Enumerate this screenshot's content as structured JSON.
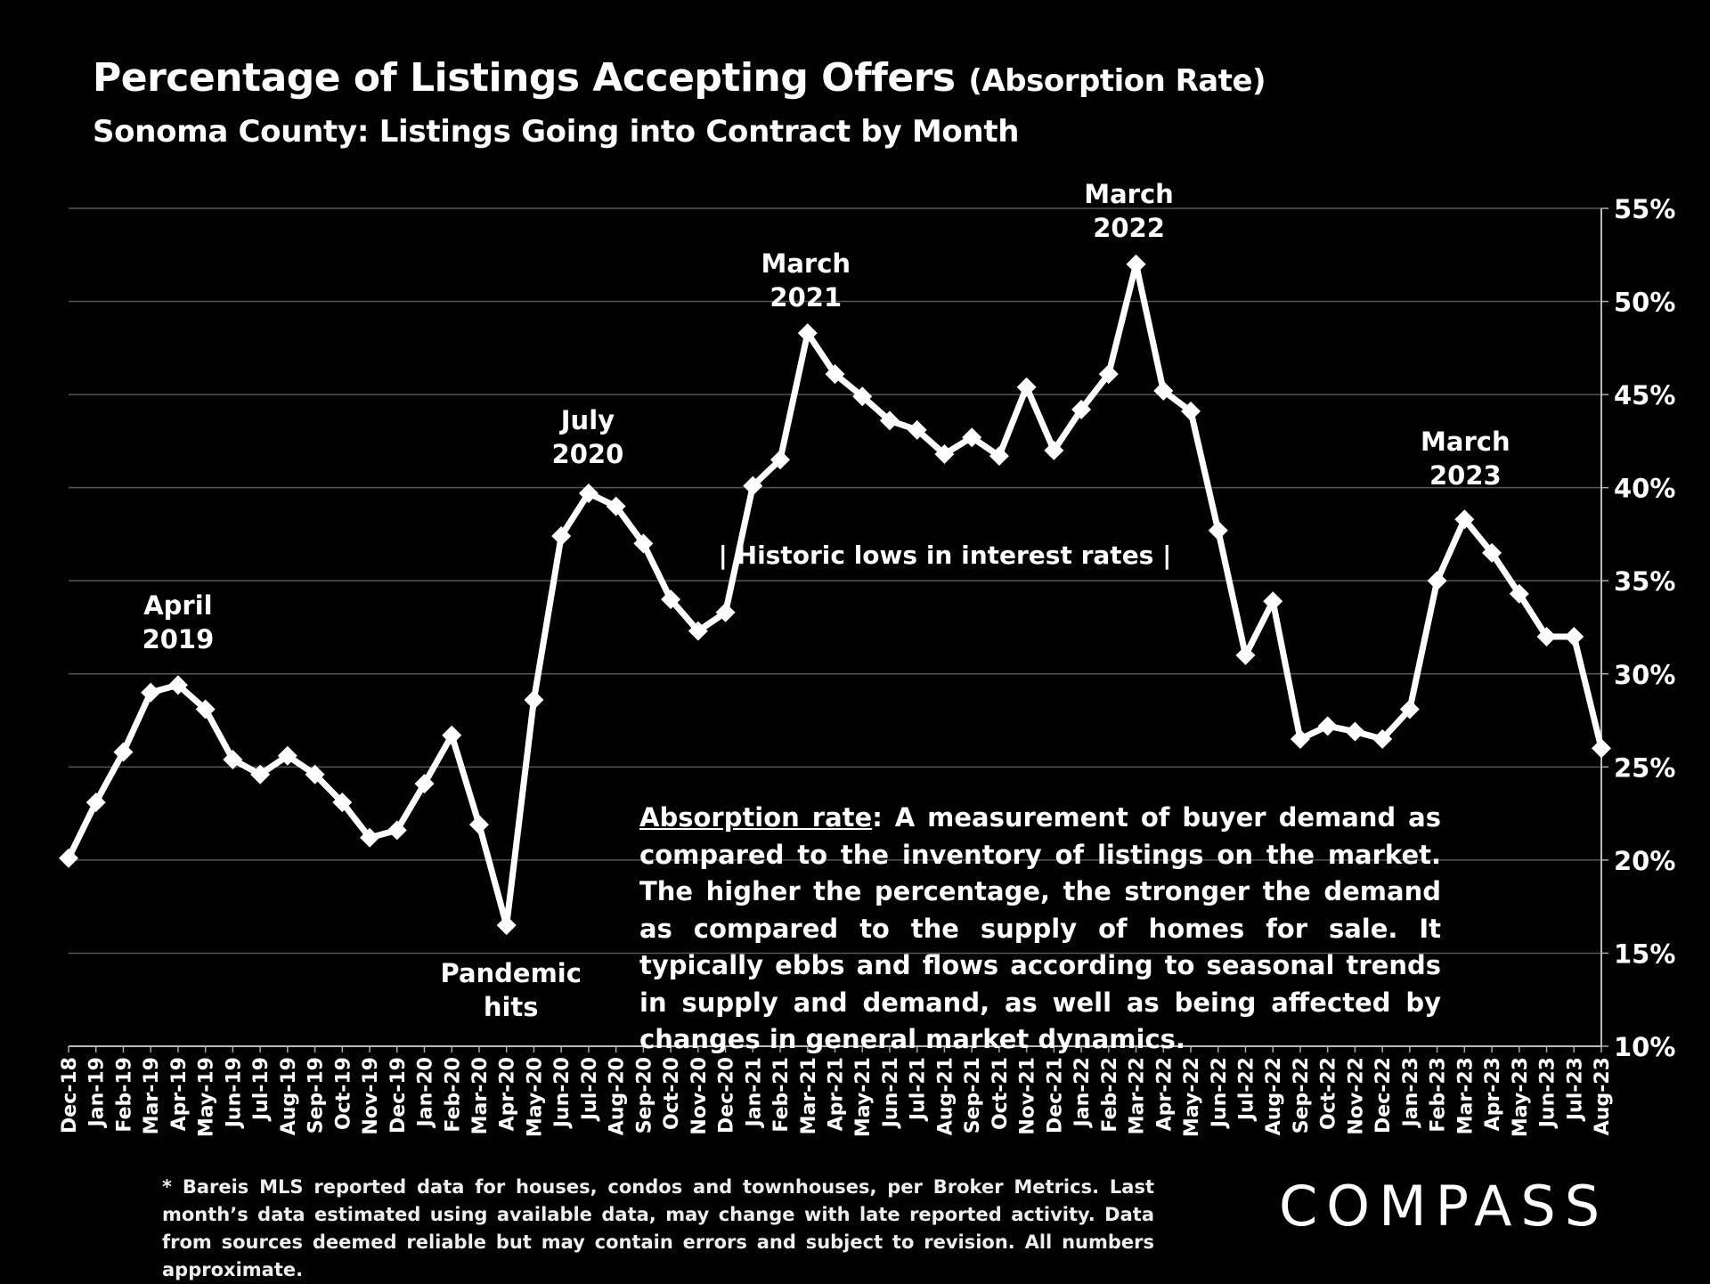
{
  "header": {
    "title_main": "Percentage of Listings Accepting Offers",
    "title_paren": "(Absorption Rate)",
    "subtitle": "Sonoma County: Listings Going into Contract by Month"
  },
  "description": {
    "term": "Absorption rate",
    "text": ":  A measurement of buyer demand as compared to the inventory of listings on the market. The higher the percentage, the stronger the demand as compared to the supply of homes for sale. It typically ebbs and flows according to seasonal trends in supply and demand, as well as being affected by changes in general market dynamics."
  },
  "footnote": "* Bareis MLS reported data for houses, condos and townhouses, per Broker Metrics. Last month’s data estimated using available data, may change with late reported activity. Data from sources deemed reliable but may contain errors and subject to revision. All numbers approximate.",
  "logo": "COMPASS",
  "colors": {
    "background": "#000000",
    "line": "#ffffff",
    "grid": "#555555"
  },
  "chart_data": {
    "type": "line",
    "title": "Percentage of Listings Accepting Offers (Absorption Rate)",
    "subtitle": "Sonoma County: Listings Going into Contract by Month",
    "categories": [
      "Dec-18",
      "Jan-19",
      "Feb-19",
      "Mar-19",
      "Apr-19",
      "May-19",
      "Jun-19",
      "Jul-19",
      "Aug-19",
      "Sep-19",
      "Oct-19",
      "Nov-19",
      "Dec-19",
      "Jan-20",
      "Feb-20",
      "Mar-20",
      "Apr-20",
      "May-20",
      "Jun-20",
      "Jul-20",
      "Aug-20",
      "Sep-20",
      "Oct-20",
      "Nov-20",
      "Dec-20",
      "Jan-21",
      "Feb-21",
      "Mar-21",
      "Apr-21",
      "May-21",
      "Jun-21",
      "Jul-21",
      "Aug-21",
      "Sep-21",
      "Oct-21",
      "Nov-21",
      "Dec-21",
      "Jan-22",
      "Feb-22",
      "Mar-22",
      "Apr-22",
      "May-22",
      "Jun-22",
      "Jul-22",
      "Aug-22",
      "Sep-22",
      "Oct-22",
      "Nov-22",
      "Dec-22",
      "Jan-23",
      "Feb-23",
      "Mar-23",
      "Apr-23",
      "May-23",
      "Jun-23",
      "Jul-23",
      "Aug-23"
    ],
    "series": [
      {
        "values": [
          20.1,
          23.1,
          25.8,
          29.0,
          29.4,
          28.1,
          25.4,
          24.6,
          25.6,
          24.6,
          23.1,
          21.2,
          21.6,
          24.1,
          26.7,
          21.9,
          16.5,
          28.6,
          37.4,
          39.7,
          39.0,
          37.0,
          34.0,
          32.3,
          33.3,
          40.1,
          41.5,
          48.3,
          46.1,
          44.9,
          43.6,
          43.1,
          41.8,
          42.7,
          41.7,
          45.4,
          42.0,
          44.2,
          46.1,
          52.0,
          45.2,
          44.1,
          37.7,
          31.0,
          33.9,
          26.5,
          27.2,
          26.9,
          26.5,
          28.1,
          35.0,
          38.3,
          36.5,
          34.3,
          32.0,
          32.0,
          26.0
        ]
      }
    ],
    "ylim": [
      10,
      55
    ],
    "yticks": [
      "10%",
      "15%",
      "20%",
      "25%",
      "30%",
      "35%",
      "40%",
      "45%",
      "50%",
      "55%"
    ],
    "y_axis_side": "right",
    "grid": true,
    "legend": "none",
    "marker": "diamond",
    "annotations": [
      {
        "index": 4,
        "lines": [
          "April",
          "2019"
        ]
      },
      {
        "index": 16,
        "lines": [
          "Pandemic",
          "hits"
        ]
      },
      {
        "index": 19,
        "lines": [
          "July",
          "2020"
        ]
      },
      {
        "index": 27,
        "lines": [
          "March",
          "2021"
        ]
      },
      {
        "index": 39,
        "lines": [
          "March",
          "2022"
        ]
      },
      {
        "index": 51,
        "lines": [
          "March",
          "2023"
        ]
      }
    ],
    "range_note": "| Historic lows in interest rates |"
  }
}
